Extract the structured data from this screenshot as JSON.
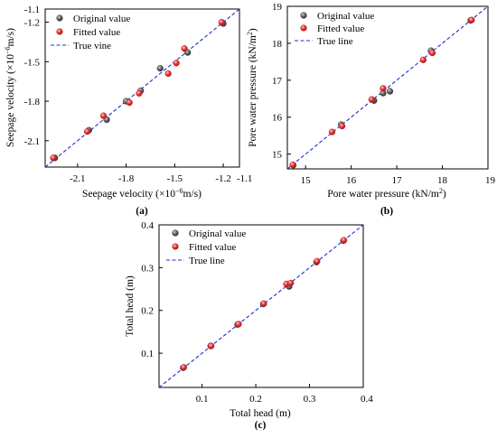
{
  "chart_data": [
    {
      "type": "scatter",
      "panel_label": "(a)",
      "xlabel": "Seepage velocity (×10",
      "xlabel_sup": "−6",
      "xlabel_tail": "m/s)",
      "ylabel": "Seepage velocity (×10",
      "ylabel_sup": "−6",
      "ylabel_tail": "m/s)",
      "xlim": [
        -2.3,
        -1.1
      ],
      "ylim": [
        -2.3,
        -1.1
      ],
      "xticks": [
        -2.1,
        -1.8,
        -1.5,
        -1.2,
        -1.1
      ],
      "xtick_labels": [
        "-2.1",
        "-1.8",
        "-1.5",
        "-1.2",
        "-1.1"
      ],
      "yticks": [
        -2.1,
        -1.8,
        -1.5,
        -1.2,
        -1.1
      ],
      "ytick_labels": [
        "-2.1",
        "-1.8",
        "-1.5",
        "-1.2",
        "-1.1"
      ],
      "legend": [
        "Original value",
        "Fitted value",
        "True vine"
      ],
      "legend_position": "top-left",
      "series": [
        {
          "name": "Original value",
          "color": "#555555",
          "points": [
            [
              -2.24,
              -2.23
            ],
            [
              -2.03,
              -2.02
            ],
            [
              -1.92,
              -1.94
            ],
            [
              -1.8,
              -1.8
            ],
            [
              -1.71,
              -1.72
            ],
            [
              -1.59,
              -1.55
            ],
            [
              -1.42,
              -1.43
            ],
            [
              -1.2,
              -1.21
            ]
          ]
        },
        {
          "name": "Fitted value",
          "color": "#e8363a",
          "points": [
            [
              -2.25,
              -2.23
            ],
            [
              -2.04,
              -2.03
            ],
            [
              -1.94,
              -1.91
            ],
            [
              -1.78,
              -1.81
            ],
            [
              -1.72,
              -1.74
            ],
            [
              -1.54,
              -1.59
            ],
            [
              -1.49,
              -1.51
            ],
            [
              -1.44,
              -1.4
            ],
            [
              -1.21,
              -1.2
            ]
          ]
        },
        {
          "name": "True vine",
          "type": "line",
          "color": "#1f2bd6",
          "points": [
            [
              -2.3,
              -2.3
            ],
            [
              -1.1,
              -1.1
            ]
          ]
        }
      ]
    },
    {
      "type": "scatter",
      "panel_label": "(b)",
      "xlabel": "Pore water pressure (kN/m",
      "xlabel_sup": "2",
      "xlabel_tail": ")",
      "ylabel": "Pore water pressure (kN/m",
      "ylabel_sup": "2",
      "ylabel_tail": ")",
      "xlim": [
        14.6,
        19
      ],
      "ylim": [
        14.6,
        19
      ],
      "xticks": [
        15,
        16,
        17,
        18,
        19
      ],
      "xtick_labels": [
        "15",
        "16",
        "17",
        "18",
        "19"
      ],
      "yticks": [
        15,
        16,
        17,
        18,
        19
      ],
      "ytick_labels": [
        "15",
        "16",
        "17",
        "18",
        "19"
      ],
      "legend": [
        "Original value",
        "Fitted value",
        "True line"
      ],
      "legend_position": "top-left",
      "series": [
        {
          "name": "Original value",
          "color": "#555555",
          "points": [
            [
              14.73,
              14.7
            ],
            [
              15.78,
              15.8
            ],
            [
              16.5,
              16.45
            ],
            [
              16.7,
              16.65
            ],
            [
              16.85,
              16.7
            ],
            [
              17.75,
              17.8
            ],
            [
              18.62,
              18.62
            ]
          ]
        },
        {
          "name": "Fitted value",
          "color": "#e8363a",
          "points": [
            [
              14.72,
              14.71
            ],
            [
              15.58,
              15.6
            ],
            [
              15.8,
              15.76
            ],
            [
              16.45,
              16.48
            ],
            [
              16.7,
              16.78
            ],
            [
              17.58,
              17.55
            ],
            [
              17.78,
              17.74
            ],
            [
              18.64,
              18.63
            ]
          ]
        },
        {
          "name": "True line",
          "type": "line",
          "color": "#1f2bd6",
          "points": [
            [
              14.6,
              14.6
            ],
            [
              19,
              19
            ]
          ]
        }
      ]
    },
    {
      "type": "scatter",
      "panel_label": "(c)",
      "xlabel": "Total head (m)",
      "ylabel": "Total head (m)",
      "xlim": [
        0.02,
        0.4
      ],
      "ylim": [
        0.02,
        0.4
      ],
      "xticks": [
        0.1,
        0.2,
        0.3,
        0.4
      ],
      "xtick_labels": [
        "0.1",
        "0.2",
        "0.3",
        "0.4"
      ],
      "yticks": [
        0.1,
        0.2,
        0.3,
        0.4
      ],
      "ytick_labels": [
        "0.1",
        "0.2",
        "0.3",
        "0.4"
      ],
      "legend": [
        "Original value",
        "Fitted value",
        "True line"
      ],
      "legend_position": "top-left",
      "series": [
        {
          "name": "Original value",
          "color": "#555555",
          "points": [
            [
              0.065,
              0.066
            ],
            [
              0.116,
              0.117
            ],
            [
              0.166,
              0.167
            ],
            [
              0.214,
              0.215
            ],
            [
              0.262,
              0.256
            ],
            [
              0.313,
              0.313
            ],
            [
              0.363,
              0.363
            ]
          ]
        },
        {
          "name": "Fitted value",
          "color": "#e8363a",
          "points": [
            [
              0.066,
              0.067
            ],
            [
              0.117,
              0.117
            ],
            [
              0.168,
              0.168
            ],
            [
              0.215,
              0.216
            ],
            [
              0.257,
              0.262
            ],
            [
              0.265,
              0.264
            ],
            [
              0.314,
              0.315
            ],
            [
              0.364,
              0.364
            ]
          ]
        },
        {
          "name": "True line",
          "type": "line",
          "color": "#1f2bd6",
          "points": [
            [
              0.02,
              0.02
            ],
            [
              0.4,
              0.4
            ]
          ]
        }
      ]
    }
  ]
}
